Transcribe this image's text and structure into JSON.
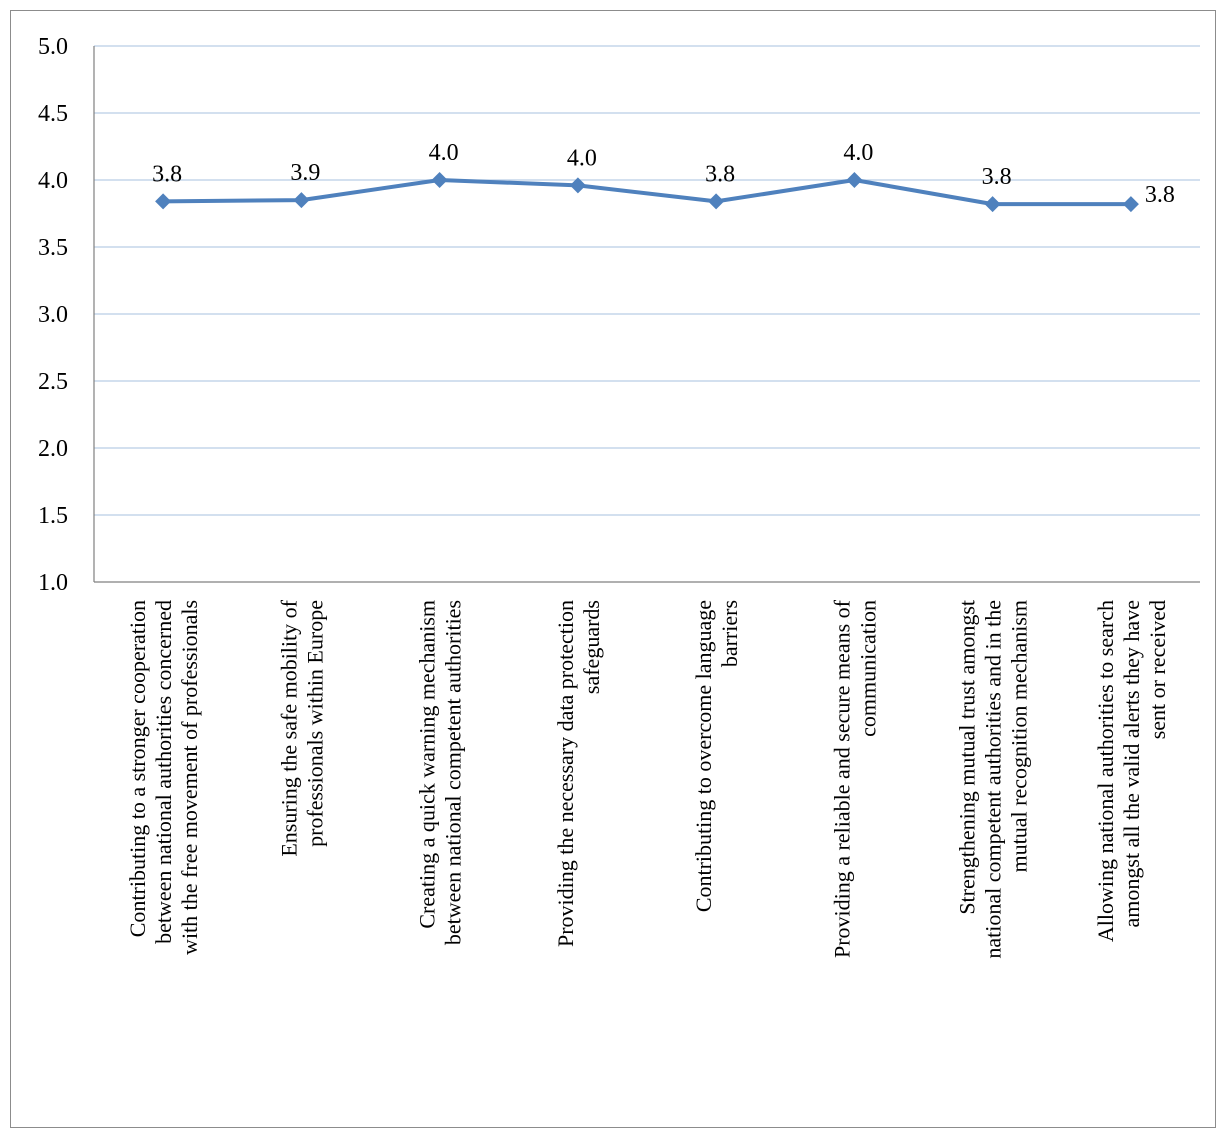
{
  "chart_data": {
    "type": "line",
    "title": "",
    "xlabel": "",
    "ylabel": "",
    "ylim": [
      1.0,
      5.0
    ],
    "yticks": [
      "1.0",
      "1.5",
      "2.0",
      "2.5",
      "3.0",
      "3.5",
      "4.0",
      "4.5",
      "5.0"
    ],
    "grid": "horizontal",
    "legend": "none",
    "categories": [
      [
        "Contributing to a stronger cooperation",
        "between national authorities concerned",
        "with the free movement of professionals"
      ],
      [
        "Ensuring the safe mobility of",
        "professionals within Europe"
      ],
      [
        "Creating a quick warning mechanism",
        "between national competent authorities"
      ],
      [
        "Providing the necessary data protection",
        "safeguards"
      ],
      [
        "Contributing to overcome language",
        "barriers"
      ],
      [
        "Providing a reliable and secure means of",
        "communication"
      ],
      [
        "Strengthening mutual trust amongst",
        "national competent authorities and in the",
        "mutual recognition mechanism"
      ],
      [
        "Allowing national authorities to search",
        "amongst all the valid alerts they have",
        "sent or received"
      ]
    ],
    "series": [
      {
        "values": [
          3.84,
          3.85,
          4.0,
          3.96,
          3.84,
          4.0,
          3.82,
          3.82
        ],
        "data_labels": [
          "3.8",
          "3.9",
          "4.0",
          "4.0",
          "3.8",
          "4.0",
          "3.8",
          "3.8"
        ]
      }
    ],
    "colors": {
      "line": "#4f81bd",
      "grid": "#b9cde5",
      "axis": "#808080"
    }
  }
}
